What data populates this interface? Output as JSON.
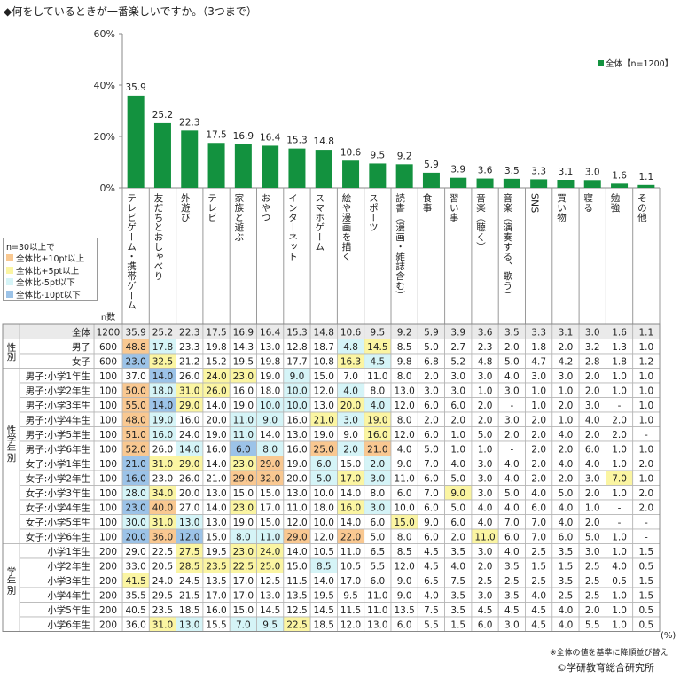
{
  "title": "◆何をしているときが一番楽しいですか。（3つまで）",
  "colors": {
    "bar": "#13923f",
    "plus10": "#f9c891",
    "plus5": "#fbf5a2",
    "minus5": "#d5f4f7",
    "minus10": "#9cc3e8"
  },
  "legend": {
    "header": "n=30以上で",
    "items": [
      {
        "label": "全体比+10pt以上",
        "color": "#f9c891"
      },
      {
        "label": "全体比+5pt以上",
        "color": "#fbf5a2"
      },
      {
        "label": "全体比-5pt以下",
        "color": "#d5f4f7"
      },
      {
        "label": "全体比-10pt以下",
        "color": "#9cc3e8"
      }
    ]
  },
  "series_legend": "全体【n=1200】",
  "n_header": "n数",
  "unit_note": "(%)",
  "footnote": "※全体の値を基準に降順並び替え",
  "copyright": "©学研教育総合研究所",
  "chart_data": {
    "type": "bar",
    "ylim": [
      0,
      60
    ],
    "y_ticks": [
      "0%",
      "20%",
      "40%",
      "60%"
    ],
    "categories": [
      "テレビゲーム・携帯ゲーム",
      "友だちとおしゃべり",
      "外遊び",
      "テレビ",
      "家族と遊ぶ",
      "おやつ",
      "インターネット",
      "スマホゲーム",
      "絵や漫画を描く",
      "スポーツ",
      "読書（漫画・雑誌含む）",
      "食事",
      "習い事",
      "音楽（聴く）",
      "音楽（演奏する、歌う）",
      "SNS",
      "買い物",
      "寝る",
      "勉強",
      "その他"
    ],
    "series": [
      {
        "name": "全体【n=1200】",
        "values": [
          35.9,
          25.2,
          22.3,
          17.5,
          16.9,
          16.4,
          15.3,
          14.8,
          10.6,
          9.5,
          9.2,
          5.9,
          3.9,
          3.6,
          3.5,
          3.3,
          3.1,
          3.0,
          1.6,
          1.1
        ]
      }
    ],
    "groups": [
      {
        "label": "",
        "rows": [
          0
        ]
      },
      {
        "label": "性別",
        "rows": [
          1,
          2
        ]
      },
      {
        "label": "性学年別",
        "rows": [
          3,
          4,
          5,
          6,
          7,
          8,
          9,
          10,
          11,
          12,
          13,
          14
        ]
      },
      {
        "label": "学年別",
        "rows": [
          15,
          16,
          17,
          18,
          19,
          20
        ]
      }
    ],
    "table": [
      {
        "label": "全体",
        "n": "100",
        "n_full": "1200",
        "values": [
          "35.9",
          "25.2",
          "22.3",
          "17.5",
          "16.9",
          "16.4",
          "15.3",
          "14.8",
          "10.6",
          "9.5",
          "9.2",
          "5.9",
          "3.9",
          "3.6",
          "3.5",
          "3.3",
          "3.1",
          "3.0",
          "1.6",
          "1.1"
        ],
        "hl": [
          "",
          "",
          "",
          "",
          "",
          "",
          "",
          "",
          "",
          "",
          "",
          "",
          "",
          "",
          "",
          "",
          "",
          "",
          "",
          ""
        ]
      },
      {
        "label": "男子",
        "n": "600",
        "values": [
          "48.8",
          "17.8",
          "23.3",
          "19.8",
          "14.3",
          "13.0",
          "12.8",
          "18.7",
          "4.8",
          "14.5",
          "8.5",
          "5.0",
          "2.7",
          "2.3",
          "2.0",
          "1.8",
          "2.0",
          "3.2",
          "1.3",
          "1.0"
        ],
        "hl": [
          "p10",
          "m5",
          "",
          "",
          "",
          "",
          "",
          "",
          "m5",
          "p5",
          "",
          "",
          "",
          "",
          "",
          "",
          "",
          "",
          "",
          ""
        ]
      },
      {
        "label": "女子",
        "n": "600",
        "values": [
          "23.0",
          "32.5",
          "21.2",
          "15.2",
          "19.5",
          "19.8",
          "17.7",
          "10.8",
          "16.3",
          "4.5",
          "9.8",
          "6.8",
          "5.2",
          "4.8",
          "5.0",
          "4.7",
          "4.2",
          "2.8",
          "1.8",
          "1.2"
        ],
        "hl": [
          "m10",
          "p5",
          "",
          "",
          "",
          "",
          "",
          "",
          "p5",
          "m5",
          "",
          "",
          "",
          "",
          "",
          "",
          "",
          "",
          "",
          ""
        ]
      },
      {
        "label": "男子:小学1年生",
        "n": "100",
        "values": [
          "37.0",
          "14.0",
          "26.0",
          "24.0",
          "23.0",
          "19.0",
          "9.0",
          "15.0",
          "7.0",
          "11.0",
          "8.0",
          "2.0",
          "3.0",
          "3.0",
          "4.0",
          "3.0",
          "3.0",
          "2.0",
          "1.0",
          "1.0"
        ],
        "hl": [
          "",
          "m10",
          "",
          "p5",
          "p5",
          "",
          "m5",
          "",
          "",
          "",
          "",
          "",
          "",
          "",
          "",
          "",
          "",
          "",
          "",
          ""
        ]
      },
      {
        "label": "男子:小学2年生",
        "n": "100",
        "values": [
          "50.0",
          "18.0",
          "31.0",
          "26.0",
          "16.0",
          "18.0",
          "10.0",
          "12.0",
          "4.0",
          "8.0",
          "13.0",
          "3.0",
          "3.0",
          "1.0",
          "3.0",
          "1.0",
          "1.0",
          "2.0",
          "1.0",
          "1.0"
        ],
        "hl": [
          "p10",
          "m5",
          "p5",
          "p5",
          "",
          "",
          "m5",
          "",
          "m5",
          "",
          "",
          "",
          "",
          "",
          "",
          "",
          "",
          "",
          "",
          ""
        ]
      },
      {
        "label": "男子:小学3年生",
        "n": "100",
        "values": [
          "55.0",
          "14.0",
          "29.0",
          "14.0",
          "19.0",
          "10.0",
          "10.0",
          "13.0",
          "20.0",
          "4.0",
          "12.0",
          "6.0",
          "6.0",
          "2.0",
          "-",
          "1.0",
          "2.0",
          "3.0",
          "-",
          "1.0"
        ],
        "hl": [
          "p10",
          "m10",
          "p5",
          "",
          "",
          "m5",
          "m5",
          "",
          "p5",
          "m5",
          "",
          "",
          "",
          "",
          "",
          "",
          "",
          "",
          "",
          ""
        ]
      },
      {
        "label": "男子:小学4年生",
        "n": "100",
        "values": [
          "48.0",
          "19.0",
          "16.0",
          "20.0",
          "11.0",
          "9.0",
          "16.0",
          "21.0",
          "3.0",
          "19.0",
          "8.0",
          "2.0",
          "2.0",
          "2.0",
          "3.0",
          "2.0",
          "1.0",
          "4.0",
          "2.0",
          "1.0"
        ],
        "hl": [
          "p10",
          "m5",
          "",
          "",
          "m5",
          "m5",
          "",
          "p5",
          "m5",
          "p5",
          "",
          "",
          "",
          "",
          "",
          "",
          "",
          "",
          "",
          ""
        ]
      },
      {
        "label": "男子:小学5年生",
        "n": "100",
        "values": [
          "51.0",
          "16.0",
          "24.0",
          "19.0",
          "11.0",
          "14.0",
          "13.0",
          "19.0",
          "9.0",
          "16.0",
          "12.0",
          "6.0",
          "1.0",
          "5.0",
          "2.0",
          "2.0",
          "4.0",
          "2.0",
          "2.0",
          "-"
        ],
        "hl": [
          "p10",
          "m5",
          "",
          "",
          "m5",
          "",
          "",
          "",
          "",
          "p5",
          "",
          "",
          "",
          "",
          "",
          "",
          "",
          "",
          "",
          ""
        ]
      },
      {
        "label": "男子:小学6年生",
        "n": "100",
        "values": [
          "52.0",
          "26.0",
          "14.0",
          "16.0",
          "6.0",
          "8.0",
          "16.0",
          "25.0",
          "2.0",
          "21.0",
          "4.0",
          "5.0",
          "1.0",
          "1.0",
          "-",
          "2.0",
          "2.0",
          "6.0",
          "1.0",
          "1.0"
        ],
        "hl": [
          "p10",
          "",
          "m5",
          "",
          "m10",
          "m5",
          "",
          "p10",
          "m5",
          "p10",
          "",
          "",
          "",
          "",
          "",
          "",
          "",
          "",
          "",
          ""
        ]
      },
      {
        "label": "女子:小学1年生",
        "n": "100",
        "values": [
          "21.0",
          "31.0",
          "29.0",
          "14.0",
          "23.0",
          "29.0",
          "19.0",
          "6.0",
          "15.0",
          "2.0",
          "9.0",
          "7.0",
          "4.0",
          "3.0",
          "4.0",
          "2.0",
          "4.0",
          "4.0",
          "1.0",
          "2.0"
        ],
        "hl": [
          "m10",
          "p5",
          "p5",
          "",
          "p5",
          "p10",
          "",
          "m5",
          "",
          "m5",
          "",
          "",
          "",
          "",
          "",
          "",
          "",
          "",
          "",
          ""
        ]
      },
      {
        "label": "女子:小学2年生",
        "n": "100",
        "values": [
          "16.0",
          "23.0",
          "26.0",
          "21.0",
          "29.0",
          "32.0",
          "20.0",
          "5.0",
          "17.0",
          "3.0",
          "11.0",
          "6.0",
          "5.0",
          "3.0",
          "4.0",
          "2.0",
          "2.0",
          "3.0",
          "7.0",
          "1.0"
        ],
        "hl": [
          "m10",
          "",
          "",
          "",
          "p10",
          "p10",
          "",
          "m5",
          "p5",
          "m5",
          "",
          "",
          "",
          "",
          "",
          "",
          "",
          "",
          "p5",
          ""
        ]
      },
      {
        "label": "女子:小学3年生",
        "n": "100",
        "values": [
          "28.0",
          "34.0",
          "20.0",
          "13.0",
          "15.0",
          "15.0",
          "13.0",
          "10.0",
          "14.0",
          "8.0",
          "6.0",
          "7.0",
          "9.0",
          "3.0",
          "5.0",
          "4.0",
          "5.0",
          "2.0",
          "1.0",
          "2.0"
        ],
        "hl": [
          "m5",
          "p5",
          "",
          "",
          "",
          "",
          "",
          "",
          "",
          "",
          "",
          "",
          "p5",
          "",
          "",
          "",
          "",
          "",
          "",
          ""
        ]
      },
      {
        "label": "女子:小学4年生",
        "n": "100",
        "values": [
          "23.0",
          "40.0",
          "27.0",
          "14.0",
          "23.0",
          "17.0",
          "11.0",
          "18.0",
          "16.0",
          "3.0",
          "10.0",
          "6.0",
          "5.0",
          "4.0",
          "4.0",
          "6.0",
          "4.0",
          "1.0",
          "-",
          "2.0"
        ],
        "hl": [
          "m10",
          "p10",
          "",
          "",
          "p5",
          "",
          "",
          "",
          "p5",
          "m5",
          "",
          "",
          "",
          "",
          "",
          "",
          "",
          "",
          "",
          ""
        ]
      },
      {
        "label": "女子:小学5年生",
        "n": "100",
        "values": [
          "30.0",
          "31.0",
          "13.0",
          "13.0",
          "19.0",
          "15.0",
          "12.0",
          "10.0",
          "14.0",
          "6.0",
          "15.0",
          "9.0",
          "6.0",
          "4.0",
          "7.0",
          "7.0",
          "4.0",
          "2.0",
          "-",
          "-"
        ],
        "hl": [
          "m5",
          "p5",
          "m5",
          "",
          "",
          "",
          "",
          "",
          "",
          "",
          "p5",
          "",
          "",
          "",
          "",
          "",
          "",
          "",
          "",
          ""
        ]
      },
      {
        "label": "女子:小学6年生",
        "n": "100",
        "values": [
          "20.0",
          "36.0",
          "12.0",
          "15.0",
          "8.0",
          "11.0",
          "29.0",
          "12.0",
          "22.0",
          "5.0",
          "8.0",
          "6.0",
          "2.0",
          "11.0",
          "6.0",
          "7.0",
          "6.0",
          "5.0",
          "1.0",
          "-"
        ],
        "hl": [
          "m10",
          "p10",
          "m10",
          "",
          "m5",
          "m5",
          "p10",
          "",
          "p10",
          "",
          "",
          "",
          "",
          "p5",
          "",
          "",
          "",
          "",
          "",
          ""
        ]
      },
      {
        "label": "小学1年生",
        "n": "200",
        "values": [
          "29.0",
          "22.5",
          "27.5",
          "19.5",
          "23.0",
          "24.0",
          "14.0",
          "10.5",
          "11.0",
          "6.5",
          "8.5",
          "4.5",
          "3.5",
          "3.0",
          "4.0",
          "2.5",
          "3.5",
          "3.0",
          "1.0",
          "1.5"
        ],
        "hl": [
          "",
          "",
          "p5",
          "",
          "p5",
          "p5",
          "",
          "",
          "",
          "",
          "",
          "",
          "",
          "",
          "",
          "",
          "",
          "",
          "",
          ""
        ]
      },
      {
        "label": "小学2年生",
        "n": "200",
        "values": [
          "33.0",
          "20.5",
          "28.5",
          "23.5",
          "22.5",
          "25.0",
          "15.0",
          "8.5",
          "10.5",
          "5.5",
          "12.0",
          "4.5",
          "4.0",
          "2.0",
          "3.5",
          "1.5",
          "1.5",
          "2.5",
          "4.0",
          "0.5"
        ],
        "hl": [
          "",
          "",
          "p5",
          "p5",
          "p5",
          "p5",
          "",
          "m5",
          "",
          "",
          "",
          "",
          "",
          "",
          "",
          "",
          "",
          "",
          "",
          ""
        ]
      },
      {
        "label": "小学3年生",
        "n": "200",
        "values": [
          "41.5",
          "24.0",
          "24.5",
          "13.5",
          "17.0",
          "12.5",
          "11.5",
          "14.0",
          "17.0",
          "6.0",
          "9.0",
          "6.5",
          "7.5",
          "2.5",
          "2.5",
          "2.5",
          "3.5",
          "2.5",
          "0.5",
          "1.5"
        ],
        "hl": [
          "p5",
          "",
          "",
          "",
          "",
          "",
          "",
          "",
          "",
          "",
          "",
          "",
          "",
          "",
          "",
          "",
          "",
          "",
          "",
          ""
        ]
      },
      {
        "label": "小学4年生",
        "n": "200",
        "values": [
          "35.5",
          "29.5",
          "21.5",
          "17.0",
          "17.0",
          "13.0",
          "13.5",
          "19.5",
          "9.5",
          "11.0",
          "9.0",
          "4.0",
          "3.5",
          "3.0",
          "3.5",
          "4.0",
          "2.5",
          "2.5",
          "1.0",
          "1.5"
        ],
        "hl": [
          "",
          "",
          "",
          "",
          "",
          "",
          "",
          "",
          "",
          "",
          "",
          "",
          "",
          "",
          "",
          "",
          "",
          "",
          "",
          ""
        ]
      },
      {
        "label": "小学5年生",
        "n": "200",
        "values": [
          "40.5",
          "23.5",
          "18.5",
          "16.0",
          "15.0",
          "14.5",
          "12.5",
          "14.5",
          "11.5",
          "11.0",
          "13.5",
          "7.5",
          "3.5",
          "4.5",
          "4.5",
          "4.5",
          "4.0",
          "2.0",
          "1.0",
          "0.5"
        ],
        "hl": [
          "",
          "",
          "",
          "",
          "",
          "",
          "",
          "",
          "",
          "",
          "",
          "",
          "",
          "",
          "",
          "",
          "",
          "",
          "",
          ""
        ]
      },
      {
        "label": "小学6年生",
        "n": "200",
        "values": [
          "36.0",
          "31.0",
          "13.0",
          "15.5",
          "7.0",
          "9.5",
          "22.5",
          "18.5",
          "12.0",
          "13.0",
          "6.0",
          "5.5",
          "1.5",
          "6.0",
          "3.0",
          "4.5",
          "4.0",
          "5.5",
          "1.0",
          "0.5"
        ],
        "hl": [
          "",
          "p5",
          "m5",
          "",
          "m5",
          "m5",
          "p5",
          "",
          "",
          "",
          "",
          "",
          "",
          "",
          "",
          "",
          "",
          "",
          "",
          ""
        ]
      }
    ]
  }
}
